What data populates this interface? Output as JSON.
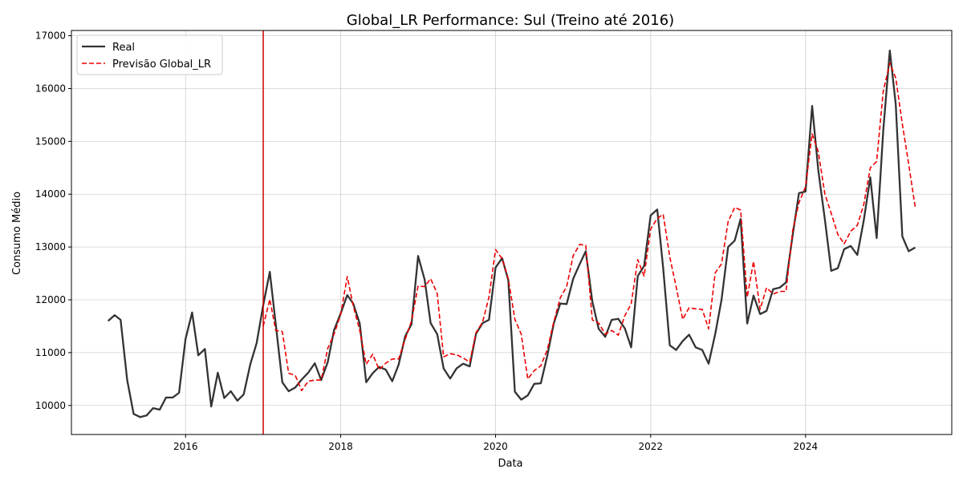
{
  "chart_data": {
    "type": "line",
    "title": "Global_LR Performance: Sul (Treino até 2016)",
    "xlabel": "Data",
    "ylabel": "Consumo Médio",
    "xlim": [
      "2014-07-12",
      "2025-11-20"
    ],
    "ylim": [
      9450,
      17100
    ],
    "x_ticks": [
      "2016-01-01",
      "2018-01-01",
      "2020-01-01",
      "2022-01-01",
      "2024-01-01"
    ],
    "x_tick_labels": [
      "2016",
      "2018",
      "2020",
      "2022",
      "2024"
    ],
    "y_ticks": [
      10000,
      11000,
      12000,
      13000,
      14000,
      15000,
      16000,
      17000
    ],
    "y_tick_labels": [
      "10000",
      "11000",
      "12000",
      "13000",
      "14000",
      "15000",
      "16000",
      "17000"
    ],
    "grid": true,
    "legend_position": "top-left",
    "vline": {
      "x": "2017-01-01",
      "color": "#cc0000"
    },
    "start_year": 2015,
    "start_month": 1,
    "series": [
      {
        "name": "Real",
        "color": "#333333",
        "dash": "solid",
        "start": "2015-01-01",
        "values": [
          11600,
          11710,
          11620,
          10480,
          9840,
          9780,
          9810,
          9950,
          9920,
          10150,
          10150,
          10240,
          11260,
          11760,
          10950,
          11070,
          9980,
          10620,
          10140,
          10270,
          10090,
          10210,
          10780,
          11180,
          11900,
          12530,
          11540,
          10440,
          10270,
          10340,
          10490,
          10620,
          10800,
          10480,
          10820,
          11430,
          11740,
          12090,
          11930,
          11550,
          10440,
          10610,
          10730,
          10680,
          10460,
          10770,
          11310,
          11540,
          12830,
          12380,
          11560,
          11350,
          10700,
          10510,
          10700,
          10790,
          10740,
          11360,
          11560,
          11620,
          12610,
          12790,
          12370,
          10260,
          10110,
          10190,
          10410,
          10420,
          10950,
          11550,
          11930,
          11920,
          12400,
          12680,
          12920,
          11970,
          11450,
          11300,
          11620,
          11640,
          11460,
          11100,
          12450,
          12640,
          13600,
          13710,
          12600,
          11140,
          11050,
          11220,
          11340,
          11100,
          11050,
          10790,
          11350,
          12000,
          13000,
          13120,
          13530,
          11550,
          12080,
          11730,
          11790,
          12200,
          12230,
          12330,
          13220,
          14020,
          14050,
          15670,
          14450,
          13520,
          12550,
          12600,
          12960,
          13020,
          12850,
          13500,
          14320,
          13170,
          15200,
          16720,
          15700,
          13200,
          12920,
          12990
        ]
      },
      {
        "name": "Previsão Global_LR",
        "color": "#ee0000",
        "dash": "dashed",
        "start": "2017-01-01",
        "values": [
          11500,
          12010,
          11420,
          11400,
          10610,
          10570,
          10280,
          10460,
          10480,
          10480,
          11080,
          11350,
          11720,
          12440,
          11890,
          11420,
          10780,
          10970,
          10680,
          10800,
          10880,
          10880,
          11250,
          11600,
          12260,
          12250,
          12400,
          12120,
          10920,
          10980,
          10960,
          10900,
          10820,
          11380,
          11580,
          12050,
          12950,
          12780,
          12400,
          11630,
          11350,
          10500,
          10660,
          10750,
          11060,
          11580,
          12040,
          12250,
          12840,
          13050,
          13030,
          11620,
          11560,
          11350,
          11420,
          11330,
          11700,
          11920,
          12760,
          12450,
          13340,
          13540,
          13620,
          12810,
          12250,
          11630,
          11850,
          11830,
          11820,
          11450,
          12510,
          12680,
          13480,
          13750,
          13700,
          12050,
          12730,
          11820,
          12230,
          12110,
          12160,
          12160,
          13310,
          13840,
          14140,
          15140,
          14800,
          14000,
          13640,
          13240,
          13060,
          13300,
          13410,
          13800,
          14500,
          14620,
          15950,
          16480,
          16200,
          15330,
          14570,
          13750
        ]
      }
    ]
  }
}
